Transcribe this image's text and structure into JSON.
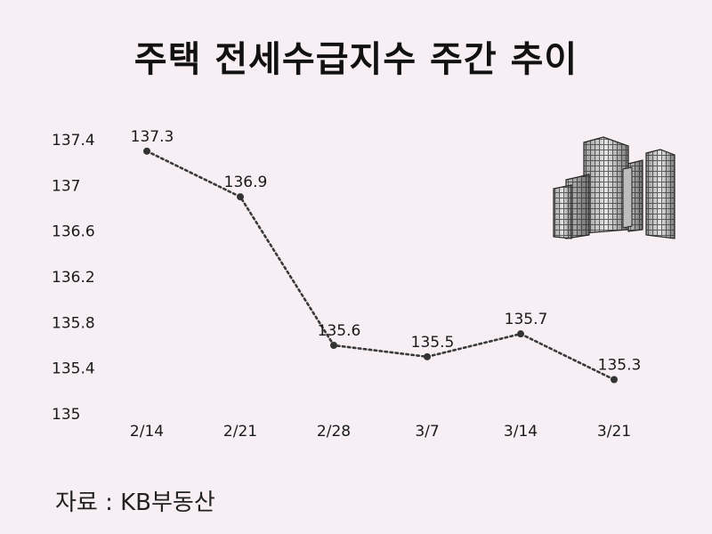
{
  "chart_data": {
    "type": "line",
    "title": "주택 전세수급지수 주간 추이",
    "categories": [
      "2/14",
      "2/21",
      "2/28",
      "3/7",
      "3/14",
      "3/21"
    ],
    "series": [
      {
        "values": [
          137.3,
          136.9,
          135.6,
          135.5,
          135.7,
          135.3
        ]
      }
    ],
    "data_labels": [
      "137.3",
      "136.9",
      "135.6",
      "135.5",
      "135.7",
      "135.3"
    ],
    "yticks": [
      "137.4",
      "137",
      "136.6",
      "136.2",
      "135.8",
      "135.4",
      "135"
    ],
    "ylim": [
      135,
      137.4
    ],
    "grid": false,
    "line_style": "dotted",
    "line_color": "#3a3a3a",
    "marker_color": "#333333"
  },
  "source": "자료 : KB부동산",
  "decoration": {
    "icon": "office-buildings-icon"
  },
  "colors": {
    "background": "#f7eff3"
  }
}
